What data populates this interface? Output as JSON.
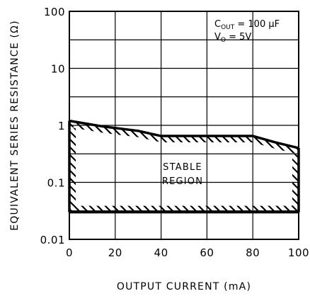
{
  "chart_data": {
    "type": "area",
    "title": "",
    "xlabel": "OUTPUT CURRENT (mA)",
    "ylabel": "EQUIVALENT SERIES RESISTANCE (Ω)",
    "xlim": [
      0,
      100
    ],
    "ylim": [
      0.01,
      100
    ],
    "yscale": "log",
    "grid": true,
    "x_ticks": [
      "0",
      "20",
      "40",
      "60",
      "80",
      "100"
    ],
    "y_ticks": [
      "0.01",
      "0.1",
      "1",
      "10",
      "100"
    ],
    "region_label": [
      "STABLE",
      "REGION"
    ],
    "annotation": {
      "cout_label": "C",
      "cout_sub": "OUT",
      "cout_value": " = 100 μF",
      "vo_label": "V",
      "vo_sub": "O",
      "vo_value": " = 5V"
    },
    "series": [
      {
        "x": [
          0,
          15,
          30,
          40,
          60,
          80,
          90,
          100
        ],
        "y": [
          1.2,
          0.95,
          0.8,
          0.65,
          0.65,
          0.65,
          0.5,
          0.4
        ]
      },
      {
        "x": [
          0,
          100
        ],
        "y": [
          0.03,
          0.03
        ]
      }
    ]
  }
}
